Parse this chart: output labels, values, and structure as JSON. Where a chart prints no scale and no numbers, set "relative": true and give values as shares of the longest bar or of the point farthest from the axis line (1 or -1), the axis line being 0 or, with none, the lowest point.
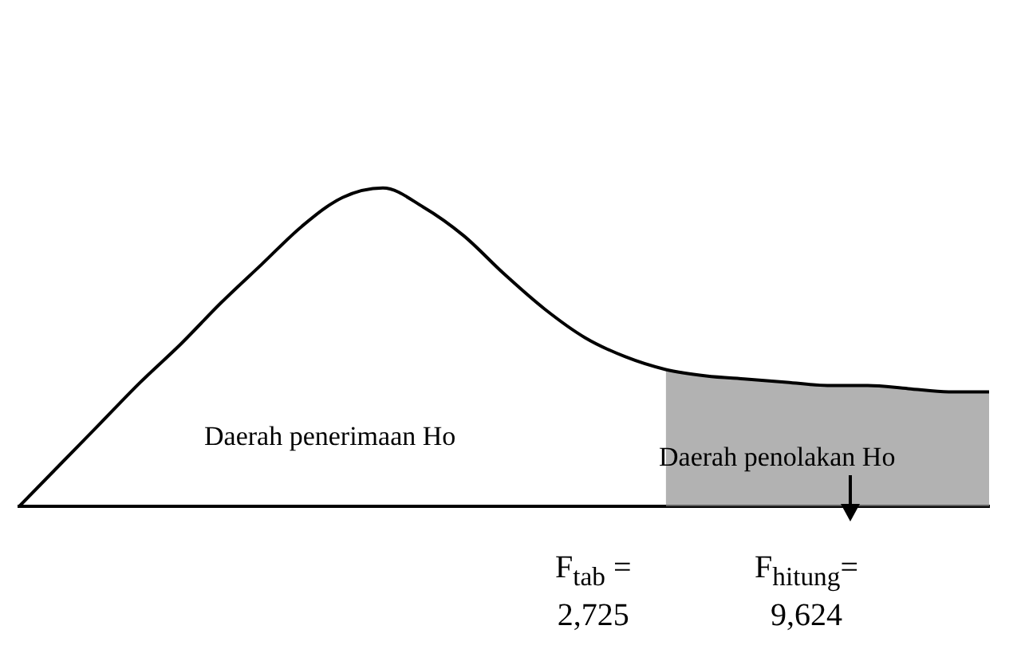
{
  "chart_data": {
    "type": "line",
    "relative": true,
    "legend": false,
    "grid": false,
    "marker": "none",
    "line_style": "solid",
    "categories": [
      null,
      null,
      null,
      null,
      null,
      null,
      null,
      null,
      null,
      null,
      null,
      null,
      null,
      null,
      null,
      null,
      null,
      null,
      null,
      null,
      null,
      null,
      null,
      null,
      null
    ],
    "series": [
      {
        "color": "#000000",
        "values": [
          0,
          0.13,
          0.26,
          0.39,
          0.51,
          0.64,
          0.76,
          0.88,
          0.97,
          1,
          0.94,
          0.85,
          0.73,
          0.62,
          0.53,
          0.47,
          0.43,
          0.41,
          0.4,
          0.39,
          0.38,
          0.38,
          0.37,
          0.36,
          0.36
        ]
      },
      {
        "type": "area",
        "color": "#8c8c8c",
        "values": [
          null,
          null,
          null,
          null,
          null,
          null,
          null,
          null,
          null,
          null,
          null,
          null,
          null,
          null,
          null,
          null,
          0.43,
          0.41,
          0.4,
          0.39,
          0.38,
          0.38,
          0.37,
          0.36,
          0.36
        ]
      }
    ],
    "annotations": [
      "Daerah penerimaan Ho",
      "Daerah penolakan Ho",
      "F$_{tab}$ =\n2,725",
      "F$_{hitung}$=\n9,624"
    ]
  }
}
